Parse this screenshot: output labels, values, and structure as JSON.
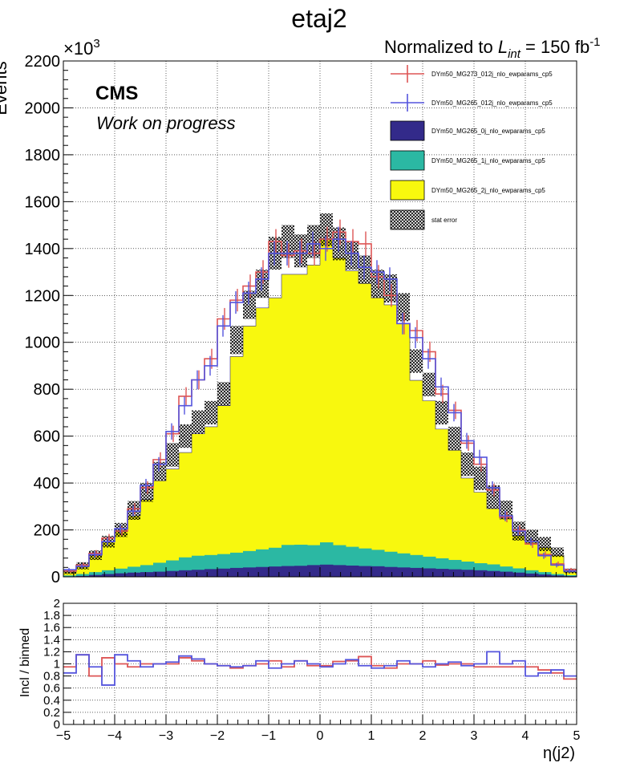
{
  "title": "etaj2",
  "norm_label": {
    "prefix": "Normalized to ",
    "sym": "L",
    "sub": "int",
    "suffix": " = 150 fb",
    "sup": "-1"
  },
  "cms_label": "CMS",
  "wip_label": "Work on progress",
  "exponent_label": {
    "base": "×10",
    "exp": "3"
  },
  "legend": [
    {
      "label": "DYm50_MG273_012j_nlo_ewparams_cp5",
      "style": "errbar",
      "color": "#dd5555"
    },
    {
      "label": "DYm50_MG265_012j_nlo_ewparams_cp5",
      "style": "errbar",
      "color": "#5555dd"
    },
    {
      "label": "DYm50_MG265_0j_nlo_ewparams_cp5",
      "style": "fill",
      "color": "#332a8a"
    },
    {
      "label": "DYm50_MG265_1j_nlo_ewparams_cp5",
      "style": "fill",
      "color": "#2bb8a3"
    },
    {
      "label": "DYm50_MG265_2j_nlo_ewparams_cp5",
      "style": "fill",
      "color": "#f8f80e"
    },
    {
      "label": "stat error",
      "style": "hatch",
      "color": "#000000"
    }
  ],
  "chart_data": [
    {
      "type": "histogram",
      "ylabel": "Events",
      "y_scale_note": "values in units of 10^3",
      "xlim": [
        -5,
        5
      ],
      "ylim": [
        0,
        2200
      ],
      "yticks": [
        0,
        200,
        400,
        600,
        800,
        1000,
        1200,
        1400,
        1600,
        1800,
        2000,
        2200
      ],
      "grid": true,
      "legend_position": "top-right",
      "bin_edges": [
        -5,
        -4.75,
        -4.5,
        -4.25,
        -4,
        -3.75,
        -3.5,
        -3.25,
        -3,
        -2.75,
        -2.5,
        -2.25,
        -2,
        -1.75,
        -1.5,
        -1.25,
        -1,
        -0.75,
        -0.5,
        -0.25,
        0,
        0.25,
        0.5,
        0.75,
        1,
        1.25,
        1.5,
        1.75,
        2,
        2.25,
        2.5,
        2.75,
        3,
        3.25,
        3.5,
        3.75,
        4,
        4.25,
        4.5,
        4.75,
        5
      ],
      "stacked_series": [
        {
          "name": "DYm50_MG265_0j_nlo_ewparams_cp5",
          "color": "#332a8a",
          "values": [
            2,
            4,
            8,
            12,
            15,
            18,
            20,
            22,
            25,
            28,
            30,
            33,
            35,
            38,
            40,
            42,
            44,
            46,
            47,
            50,
            52,
            50,
            48,
            46,
            45,
            42,
            40,
            38,
            36,
            34,
            32,
            30,
            28,
            25,
            22,
            18,
            14,
            10,
            6,
            3
          ]
        },
        {
          "name": "DYm50_MG265_1j_nlo_ewparams_cp5",
          "color": "#2bb8a3",
          "values": [
            4,
            8,
            12,
            16,
            20,
            25,
            30,
            38,
            45,
            55,
            60,
            60,
            62,
            65,
            70,
            75,
            80,
            90,
            90,
            85,
            95,
            85,
            80,
            75,
            70,
            65,
            60,
            55,
            50,
            45,
            40,
            35,
            30,
            28,
            22,
            18,
            14,
            10,
            6,
            4
          ]
        },
        {
          "name": "DYm50_MG265_2j_nlo_ewparams_cp5",
          "color": "#f8f80e",
          "values": [
            14,
            33,
            70,
            120,
            160,
            217,
            280,
            350,
            390,
            447,
            520,
            547,
            633,
            837,
            960,
            1030,
            1066,
            1154,
            1153,
            1195,
            1293,
            1225,
            1177,
            1130,
            1075,
            1053,
            982,
            745,
            665,
            551,
            468,
            356,
            303,
            238,
            206,
            139,
            127,
            105,
            80,
            13
          ]
        }
      ],
      "overlay_series": [
        {
          "name": "DYm50_MG273_012j_nlo_ewparams_cp5",
          "color": "#dd5555",
          "values": [
            25,
            50,
            100,
            165,
            195,
            290,
            380,
            500,
            610,
            770,
            840,
            930,
            1100,
            1180,
            1240,
            1300,
            1430,
            1370,
            1390,
            1380,
            1440,
            1470,
            1430,
            1420,
            1280,
            1200,
            1080,
            1050,
            960,
            780,
            710,
            570,
            480,
            370,
            255,
            200,
            140,
            95,
            55,
            30
          ]
        },
        {
          "name": "DYm50_MG265_012j_nlo_ewparams_cp5",
          "color": "#5555dd",
          "values": [
            30,
            45,
            95,
            150,
            205,
            280,
            390,
            480,
            620,
            730,
            840,
            900,
            1070,
            1170,
            1210,
            1270,
            1380,
            1380,
            1380,
            1420,
            1400,
            1440,
            1380,
            1320,
            1300,
            1270,
            1080,
            1020,
            930,
            810,
            700,
            580,
            510,
            380,
            260,
            195,
            150,
            90,
            50,
            25
          ]
        }
      ],
      "stat_error_total": [
        22,
        47,
        92,
        150,
        200,
        283,
        360,
        450,
        520,
        600,
        660,
        700,
        780,
        1010,
        1160,
        1250,
        1380,
        1430,
        1390,
        1430,
        1480,
        1420,
        1370,
        1310,
        1250,
        1230,
        1150,
        920,
        820,
        700,
        590,
        480,
        420,
        340,
        285,
        195,
        170,
        140,
        105,
        25
      ],
      "stat_error_half_band": [
        10,
        15,
        20,
        25,
        30,
        40,
        40,
        40,
        50,
        50,
        50,
        50,
        50,
        60,
        60,
        60,
        70,
        70,
        70,
        70,
        70,
        70,
        60,
        60,
        60,
        60,
        60,
        50,
        50,
        50,
        50,
        50,
        50,
        50,
        40,
        40,
        30,
        30,
        20,
        10
      ]
    },
    {
      "type": "line",
      "ylabel": "Incl / binned",
      "xlabel": "η(j2)",
      "xlim": [
        -5,
        5
      ],
      "ylim": [
        0,
        2
      ],
      "yticks": [
        "0",
        "0.2",
        "0.4",
        "0.6",
        "0.8",
        "1",
        "1.2",
        "1.4",
        "1.6",
        "1.8",
        "2"
      ],
      "xticks": [
        "−5",
        "−4",
        "−3",
        "−2",
        "−1",
        "0",
        "1",
        "2",
        "3",
        "4",
        "5"
      ],
      "grid": true,
      "series": [
        {
          "name": "DYm50_MG273_012j_nlo_ewparams_cp5",
          "color": "#dd5555",
          "values": [
            0.95,
            1.15,
            0.8,
            1.1,
            1.0,
            0.95,
            1.0,
            1.0,
            1.0,
            1.1,
            1.05,
            1.0,
            0.97,
            0.93,
            0.97,
            1.0,
            1.05,
            0.95,
            1.05,
            0.97,
            0.97,
            1.04,
            1.05,
            1.12,
            0.97,
            0.93,
            1.0,
            1.0,
            1.05,
            0.98,
            1.0,
            1.0,
            0.95,
            0.95,
            0.95,
            0.95,
            0.95,
            0.9,
            0.85,
            0.75
          ]
        },
        {
          "name": "DYm50_MG265_012j_nlo_ewparams_cp5",
          "color": "#5555dd",
          "values": [
            0.85,
            1.15,
            0.95,
            0.65,
            1.15,
            1.05,
            0.95,
            1.0,
            1.03,
            1.13,
            1.08,
            1.0,
            0.97,
            0.95,
            0.97,
            1.05,
            0.93,
            1.0,
            1.05,
            1.0,
            0.95,
            1.0,
            1.07,
            0.97,
            0.93,
            0.97,
            1.05,
            1.0,
            0.95,
            1.0,
            1.03,
            0.97,
            1.0,
            1.2,
            1.0,
            1.05,
            0.8,
            0.85,
            0.9,
            0.8
          ]
        }
      ]
    }
  ]
}
